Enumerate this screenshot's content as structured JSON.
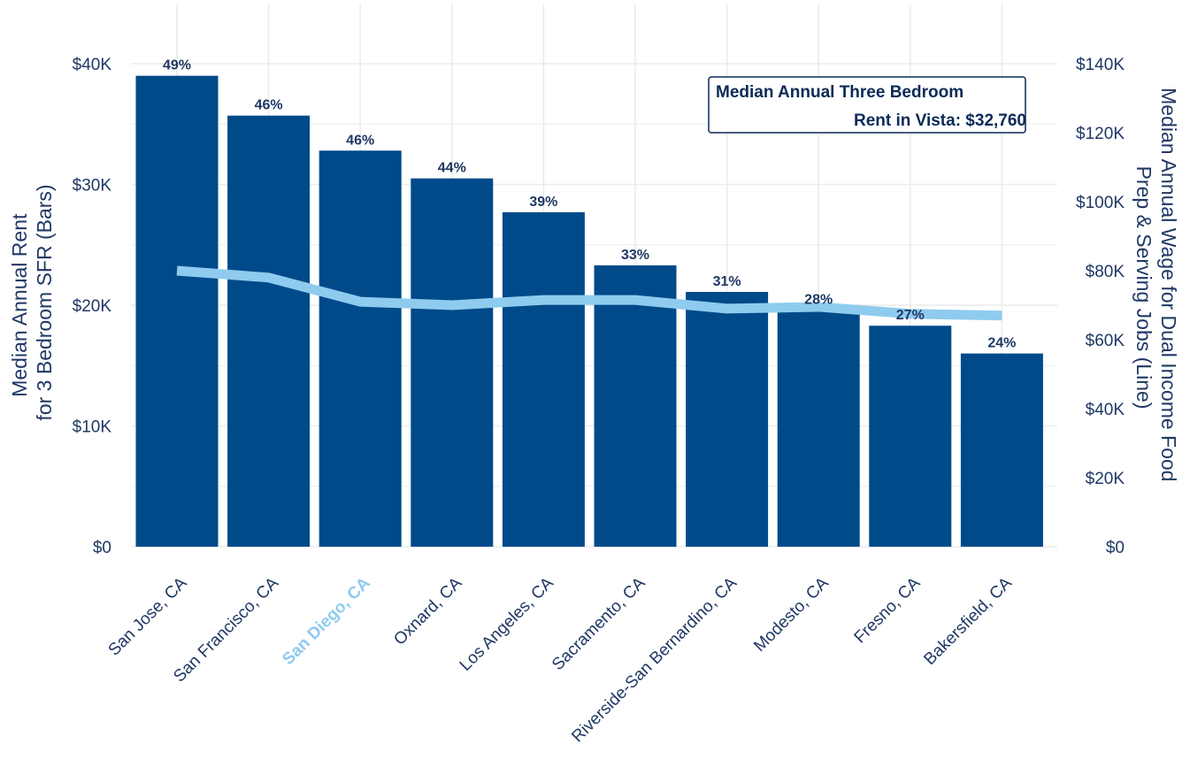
{
  "chart_data": {
    "type": "bar",
    "categories": [
      "San Jose, CA",
      "San Francisco, CA",
      "San Diego, CA",
      "Oxnard, CA",
      "Los Angeles, CA",
      "Sacramento, CA",
      "Riverside-San Bernardino, CA",
      "Modesto, CA",
      "Fresno, CA",
      "Bakersfield, CA"
    ],
    "highlight_category": "San Diego, CA",
    "series": [
      {
        "type": "bar",
        "axis": "left",
        "values": [
          39000,
          35700,
          32800,
          30500,
          27700,
          23300,
          21100,
          19600,
          18300,
          16000
        ]
      },
      {
        "type": "line",
        "axis": "right",
        "values": [
          80000,
          78000,
          71000,
          70000,
          71500,
          71500,
          69000,
          69500,
          67500,
          67000
        ]
      }
    ],
    "bar_labels": [
      "49%",
      "46%",
      "46%",
      "44%",
      "39%",
      "33%",
      "31%",
      "28%",
      "27%",
      "24%"
    ],
    "ylabel_left": [
      "Median Annual Rent",
      "for 3 Bedroom SFR (Bars)"
    ],
    "ylabel_right": [
      "Median Annual Wage for Dual Income Food",
      "Prep & Serving Jobs (Line)"
    ],
    "ylim_left": [
      0,
      45000
    ],
    "ylim_right": [
      0,
      150000
    ],
    "yticks_left": [
      {
        "value": 0,
        "label": "$0"
      },
      {
        "value": 10000,
        "label": "$10K"
      },
      {
        "value": 20000,
        "label": "$20K"
      },
      {
        "value": 30000,
        "label": "$30K"
      },
      {
        "value": 40000,
        "label": "$40K"
      }
    ],
    "yticks_right": [
      {
        "value": 0,
        "label": "$0"
      },
      {
        "value": 20000,
        "label": "$20K"
      },
      {
        "value": 40000,
        "label": "$40K"
      },
      {
        "value": 60000,
        "label": "$60K"
      },
      {
        "value": 80000,
        "label": "$80K"
      },
      {
        "value": 100000,
        "label": "$100K"
      },
      {
        "value": 120000,
        "label": "$120K"
      },
      {
        "value": 140000,
        "label": "$140K"
      }
    ],
    "annotation": [
      "Median Annual Three Bedroom",
      "Rent in Vista: $32,760"
    ],
    "annotation_placement": "top-right",
    "grid": true,
    "colors": {
      "bar": "#004a8a",
      "line": "#8fcbee",
      "highlight_label": "#8fcbee",
      "text": "#1f3864",
      "grid": "#ebebeb"
    }
  }
}
